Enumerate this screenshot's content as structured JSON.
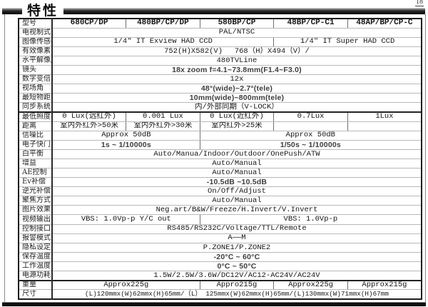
{
  "page": {
    "title": "特性",
    "page_number": "18"
  },
  "table": {
    "rows": [
      {
        "label": "型号",
        "cells": [
          {
            "text": "680CP/DP",
            "span": 1,
            "style": "model"
          },
          {
            "text": "480BP/CP/DP",
            "span": 1,
            "style": "model"
          },
          {
            "text": "580BP/CP",
            "span": 1,
            "style": "model"
          },
          {
            "text": "48BP/CP-C1",
            "span": 1,
            "style": "model"
          },
          {
            "text": "48AP/BP/CP-C",
            "span": 1,
            "style": "model"
          }
        ]
      },
      {
        "label": "电视制式",
        "cells": [
          {
            "text": "PAL/NTSC",
            "span": 5
          }
        ]
      },
      {
        "label": "图像传感器",
        "cells": [
          {
            "text": "1/4\" IT Exview HAD CCD",
            "span": 3
          },
          {
            "text": "1/4\" IT Super HAD CCD",
            "span": 2
          }
        ]
      },
      {
        "label": "有效像素",
        "cells": [
          {
            "text": "752(H)X582(V)　 768（H）X494（V）/",
            "span": 5
          }
        ]
      },
      {
        "label": "水平解像度",
        "cells": [
          {
            "text": "480TVLine",
            "span": 5
          }
        ]
      },
      {
        "label": "镜头",
        "cells": [
          {
            "text": "18x zoom f=4.1~73.8mm(F1.4~F3.0)",
            "span": 5,
            "style": "sans"
          }
        ]
      },
      {
        "label": "数字变倍",
        "cells": [
          {
            "text": "12x",
            "span": 5
          }
        ]
      },
      {
        "label": "视场角",
        "cells": [
          {
            "text": "48°(wide)~2.7°(tele)",
            "span": 5,
            "style": "sans"
          }
        ]
      },
      {
        "label": "最短物距",
        "cells": [
          {
            "text": "10mm(wide)~800mm(tele)",
            "span": 5,
            "style": "sans"
          }
        ]
      },
      {
        "label": "同步系统",
        "cells": [
          {
            "text": "内/外部同期（V-LOCK）",
            "span": 5
          }
        ]
      },
      {
        "label": "最低照度",
        "thick_top": true,
        "cells": [
          {
            "text": "0 Lux(远红外)",
            "span": 1
          },
          {
            "text": "0.001 Lux",
            "span": 1
          },
          {
            "text": "0 Lux(近红外)",
            "span": 1
          },
          {
            "text": "0.7Lux",
            "span": 1
          },
          {
            "text": "1Lux",
            "span": 1
          }
        ]
      },
      {
        "label": "距离",
        "cells": [
          {
            "text": "室内外红外>50米",
            "span": 1
          },
          {
            "text": "室内外红外>30米",
            "span": 1
          },
          {
            "text": "室内红外>25米",
            "span": 1
          },
          {
            "text": "",
            "span": 1
          },
          {
            "text": "",
            "span": 1
          }
        ]
      },
      {
        "label": "信噪比",
        "cells": [
          {
            "text": "Approx 50dB",
            "span": 2
          },
          {
            "text": "Approx 50dB",
            "span": 3
          }
        ]
      },
      {
        "label": "电子快门",
        "cells": [
          {
            "text": "1s ~ 1/10000s",
            "span": 2,
            "style": "sans"
          },
          {
            "text": "1/50s ~ 1/10000s",
            "span": 3,
            "style": "sans"
          }
        ]
      },
      {
        "label": "白平衡",
        "cells": [
          {
            "text": "Auto/Manua/Indoor/Outdoor/OnePush/ATW",
            "span": 5
          }
        ]
      },
      {
        "label": "增益",
        "cells": [
          {
            "text": "Auto/Manual",
            "span": 5
          }
        ]
      },
      {
        "label": "AE控制",
        "cells": [
          {
            "text": "Auto/Manual",
            "span": 5
          }
        ]
      },
      {
        "label": "Ev补偿",
        "cells": [
          {
            "text": "-10.5dB ~10.5dB",
            "span": 5,
            "style": "sans"
          }
        ]
      },
      {
        "label": "逆光补偿",
        "cells": [
          {
            "text": "On/Off/Adjust",
            "span": 5
          }
        ]
      },
      {
        "label": "聚焦方式",
        "cells": [
          {
            "text": "Auto/Manual",
            "span": 5
          }
        ]
      },
      {
        "label": "图片效果",
        "cells": [
          {
            "text": "Neg.art/B&W/Freeze/H.Invert/V.Invert",
            "span": 5
          }
        ]
      },
      {
        "label": "视频输出",
        "cells": [
          {
            "text": "VBS: 1.0Vp-p Y/C out",
            "span": 2
          },
          {
            "text": "VBS: 1.0Vp-p",
            "span": 3
          }
        ]
      },
      {
        "label": "控制接口",
        "cells": [
          {
            "text": "RS485/RS232C/Voltage/TTL/Remote",
            "span": 5
          }
        ]
      },
      {
        "label": "报警模式",
        "cells": [
          {
            "text": "A——M",
            "span": 5
          }
        ]
      },
      {
        "label": "隐私设定",
        "cells": [
          {
            "text": "P.ZONE1/P.ZONE2",
            "span": 5
          }
        ]
      },
      {
        "label": "保存温度",
        "cells": [
          {
            "text": "-20°C ~ 60°C",
            "span": 5,
            "style": "sans"
          }
        ]
      },
      {
        "label": "工作温度",
        "cells": [
          {
            "text": "0°C ~ 50°C",
            "span": 5,
            "style": "sans"
          }
        ]
      },
      {
        "label": "电源功耗",
        "cells": [
          {
            "text": "1.5W/2.5W/3.6W/DC12V/AC12-AC24V/AC24V",
            "span": 5
          }
        ]
      },
      {
        "label": "重量",
        "thick_top": true,
        "cells": [
          {
            "text": "Approx225g",
            "span": 2
          },
          {
            "text": "Appro215g",
            "span": 1
          },
          {
            "text": "Approx225g",
            "span": 1
          },
          {
            "text": "Approx215g",
            "span": 1
          }
        ]
      },
      {
        "label": "尺寸",
        "cells": [
          {
            "text": "(L)120mmx(W)62mmx(H)65mm/（L） 125mmx(W)62mmx(H)65mm/(L)130mmx(W)71mmx(H)67mm",
            "span": 5,
            "style": "small"
          }
        ]
      }
    ]
  }
}
